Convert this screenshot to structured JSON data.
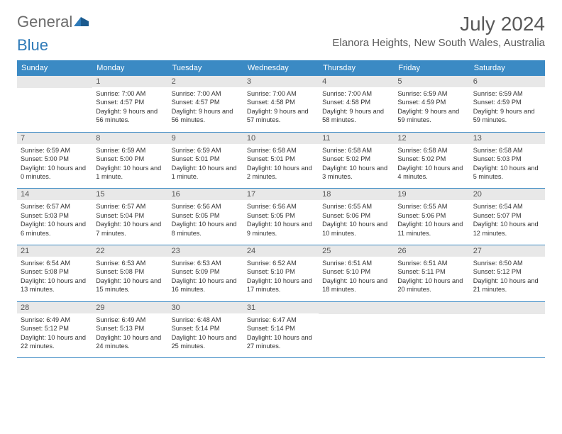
{
  "logo": {
    "text1": "General",
    "text2": "Blue",
    "color1": "#6b6b6b",
    "color2": "#2e7ab8"
  },
  "title": "July 2024",
  "location": "Elanora Heights, New South Wales, Australia",
  "colors": {
    "header_bg": "#3b8ac4",
    "daynum_bg": "#e8e8e8",
    "rule": "#3b8ac4"
  },
  "day_headers": [
    "Sunday",
    "Monday",
    "Tuesday",
    "Wednesday",
    "Thursday",
    "Friday",
    "Saturday"
  ],
  "weeks": [
    [
      null,
      {
        "n": "1",
        "sr": "7:00 AM",
        "ss": "4:57 PM",
        "dl": "9 hours and 56 minutes."
      },
      {
        "n": "2",
        "sr": "7:00 AM",
        "ss": "4:57 PM",
        "dl": "9 hours and 56 minutes."
      },
      {
        "n": "3",
        "sr": "7:00 AM",
        "ss": "4:58 PM",
        "dl": "9 hours and 57 minutes."
      },
      {
        "n": "4",
        "sr": "7:00 AM",
        "ss": "4:58 PM",
        "dl": "9 hours and 58 minutes."
      },
      {
        "n": "5",
        "sr": "6:59 AM",
        "ss": "4:59 PM",
        "dl": "9 hours and 59 minutes."
      },
      {
        "n": "6",
        "sr": "6:59 AM",
        "ss": "4:59 PM",
        "dl": "9 hours and 59 minutes."
      }
    ],
    [
      {
        "n": "7",
        "sr": "6:59 AM",
        "ss": "5:00 PM",
        "dl": "10 hours and 0 minutes."
      },
      {
        "n": "8",
        "sr": "6:59 AM",
        "ss": "5:00 PM",
        "dl": "10 hours and 1 minute."
      },
      {
        "n": "9",
        "sr": "6:59 AM",
        "ss": "5:01 PM",
        "dl": "10 hours and 1 minute."
      },
      {
        "n": "10",
        "sr": "6:58 AM",
        "ss": "5:01 PM",
        "dl": "10 hours and 2 minutes."
      },
      {
        "n": "11",
        "sr": "6:58 AM",
        "ss": "5:02 PM",
        "dl": "10 hours and 3 minutes."
      },
      {
        "n": "12",
        "sr": "6:58 AM",
        "ss": "5:02 PM",
        "dl": "10 hours and 4 minutes."
      },
      {
        "n": "13",
        "sr": "6:58 AM",
        "ss": "5:03 PM",
        "dl": "10 hours and 5 minutes."
      }
    ],
    [
      {
        "n": "14",
        "sr": "6:57 AM",
        "ss": "5:03 PM",
        "dl": "10 hours and 6 minutes."
      },
      {
        "n": "15",
        "sr": "6:57 AM",
        "ss": "5:04 PM",
        "dl": "10 hours and 7 minutes."
      },
      {
        "n": "16",
        "sr": "6:56 AM",
        "ss": "5:05 PM",
        "dl": "10 hours and 8 minutes."
      },
      {
        "n": "17",
        "sr": "6:56 AM",
        "ss": "5:05 PM",
        "dl": "10 hours and 9 minutes."
      },
      {
        "n": "18",
        "sr": "6:55 AM",
        "ss": "5:06 PM",
        "dl": "10 hours and 10 minutes."
      },
      {
        "n": "19",
        "sr": "6:55 AM",
        "ss": "5:06 PM",
        "dl": "10 hours and 11 minutes."
      },
      {
        "n": "20",
        "sr": "6:54 AM",
        "ss": "5:07 PM",
        "dl": "10 hours and 12 minutes."
      }
    ],
    [
      {
        "n": "21",
        "sr": "6:54 AM",
        "ss": "5:08 PM",
        "dl": "10 hours and 13 minutes."
      },
      {
        "n": "22",
        "sr": "6:53 AM",
        "ss": "5:08 PM",
        "dl": "10 hours and 15 minutes."
      },
      {
        "n": "23",
        "sr": "6:53 AM",
        "ss": "5:09 PM",
        "dl": "10 hours and 16 minutes."
      },
      {
        "n": "24",
        "sr": "6:52 AM",
        "ss": "5:10 PM",
        "dl": "10 hours and 17 minutes."
      },
      {
        "n": "25",
        "sr": "6:51 AM",
        "ss": "5:10 PM",
        "dl": "10 hours and 18 minutes."
      },
      {
        "n": "26",
        "sr": "6:51 AM",
        "ss": "5:11 PM",
        "dl": "10 hours and 20 minutes."
      },
      {
        "n": "27",
        "sr": "6:50 AM",
        "ss": "5:12 PM",
        "dl": "10 hours and 21 minutes."
      }
    ],
    [
      {
        "n": "28",
        "sr": "6:49 AM",
        "ss": "5:12 PM",
        "dl": "10 hours and 22 minutes."
      },
      {
        "n": "29",
        "sr": "6:49 AM",
        "ss": "5:13 PM",
        "dl": "10 hours and 24 minutes."
      },
      {
        "n": "30",
        "sr": "6:48 AM",
        "ss": "5:14 PM",
        "dl": "10 hours and 25 minutes."
      },
      {
        "n": "31",
        "sr": "6:47 AM",
        "ss": "5:14 PM",
        "dl": "10 hours and 27 minutes."
      },
      null,
      null,
      null
    ]
  ],
  "labels": {
    "sunrise": "Sunrise:",
    "sunset": "Sunset:",
    "daylight": "Daylight:"
  }
}
